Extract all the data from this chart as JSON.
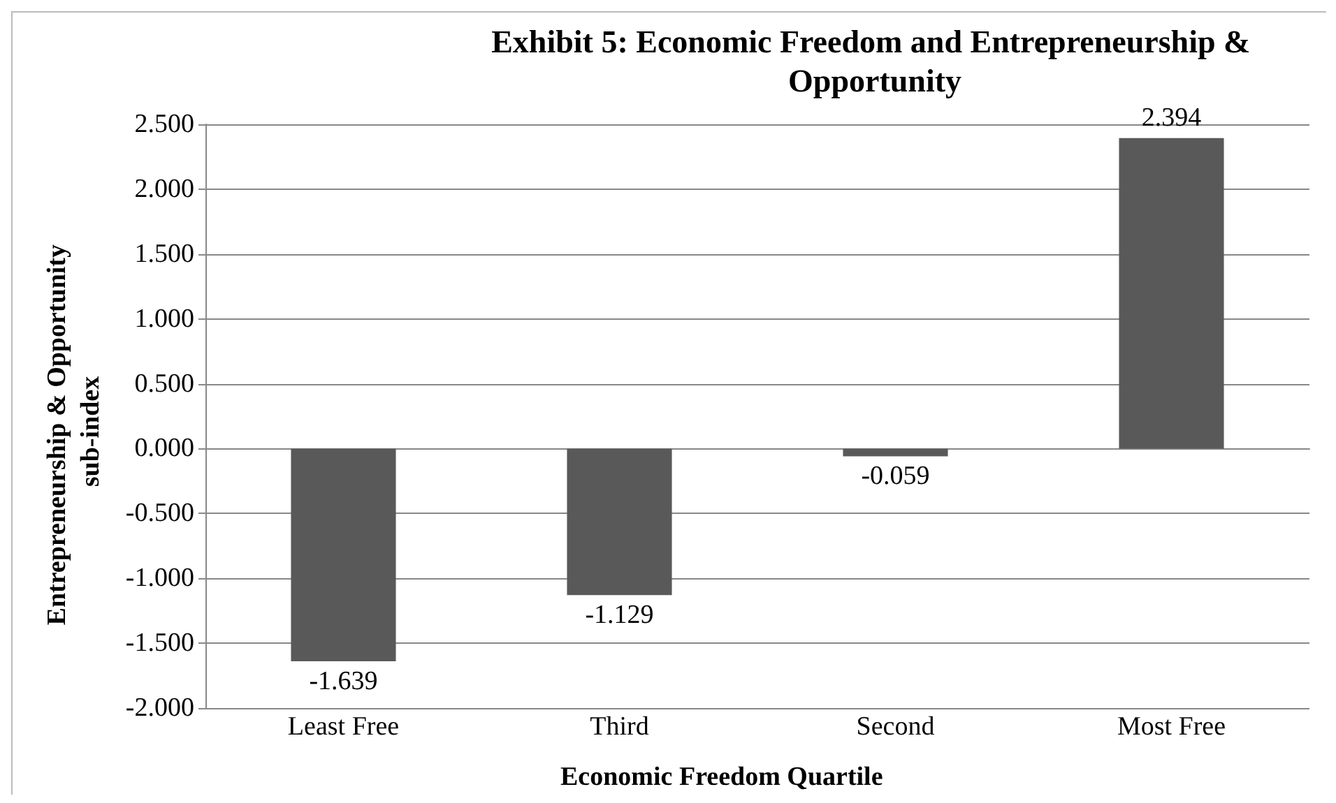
{
  "chart_data": {
    "type": "bar",
    "title": "Exhibit 5: Economic Freedom and Entrepreneurship & Opportunity",
    "xlabel": "Economic Freedom Quartile",
    "ylabel": "Entrepreneurship & Opportunity sub-index",
    "categories": [
      "Least Free",
      "Third",
      "Second",
      "Most Free"
    ],
    "values": [
      -1.639,
      -1.129,
      -0.059,
      2.394
    ],
    "color": "#595959",
    "ylim": [
      -2,
      2.5
    ],
    "yticks": [
      {
        "value": -2,
        "label": "-2.000"
      },
      {
        "value": -1.5,
        "label": "-1.500"
      },
      {
        "value": -1,
        "label": "-1.000"
      },
      {
        "value": -0.5,
        "label": "-0.500"
      },
      {
        "value": 0,
        "label": "0.000"
      },
      {
        "value": 0.5,
        "label": "0.500"
      },
      {
        "value": 1,
        "label": "1.000"
      },
      {
        "value": 1.5,
        "label": "1.500"
      },
      {
        "value": 2,
        "label": "2.000"
      },
      {
        "value": 2.5,
        "label": "2.500"
      }
    ],
    "grid": "y",
    "data_labels": true
  }
}
